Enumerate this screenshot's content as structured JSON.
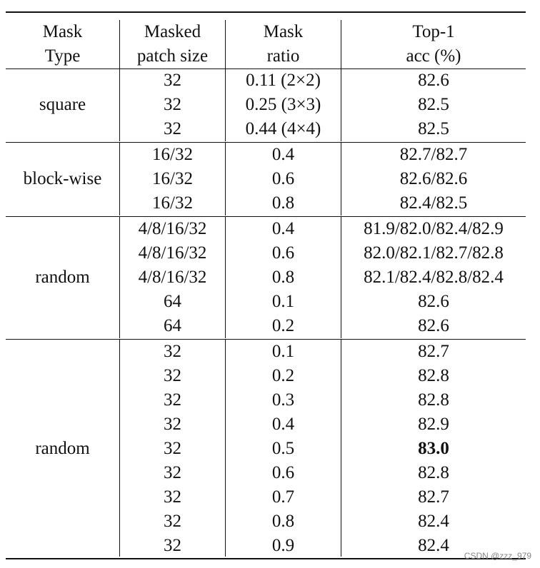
{
  "headers": {
    "mask_type": [
      "Mask",
      "Type"
    ],
    "patch_size": [
      "Masked",
      "patch size"
    ],
    "mask_ratio": [
      "Mask",
      "ratio"
    ],
    "top1": [
      "Top-1",
      "acc (%)"
    ]
  },
  "groups": [
    {
      "mask_type": "square",
      "rows": [
        {
          "patch": "32",
          "ratio": "0.11 (2×2)",
          "acc": "82.6"
        },
        {
          "patch": "32",
          "ratio": "0.25 (3×3)",
          "acc": "82.5"
        },
        {
          "patch": "32",
          "ratio": "0.44 (4×4)",
          "acc": "82.5"
        }
      ]
    },
    {
      "mask_type": "block-wise",
      "rows": [
        {
          "patch": "16/32",
          "ratio": "0.4",
          "acc": "82.7/82.7"
        },
        {
          "patch": "16/32",
          "ratio": "0.6",
          "acc": "82.6/82.6"
        },
        {
          "patch": "16/32",
          "ratio": "0.8",
          "acc": "82.4/82.5"
        }
      ]
    },
    {
      "mask_type": "random",
      "rows": [
        {
          "patch": "4/8/16/32",
          "ratio": "0.4",
          "acc": "81.9/82.0/82.4/82.9"
        },
        {
          "patch": "4/8/16/32",
          "ratio": "0.6",
          "acc": "82.0/82.1/82.7/82.8"
        },
        {
          "patch": "4/8/16/32",
          "ratio": "0.8",
          "acc": "82.1/82.4/82.8/82.4"
        },
        {
          "patch": "64",
          "ratio": "0.1",
          "acc": "82.6"
        },
        {
          "patch": "64",
          "ratio": "0.2",
          "acc": "82.6"
        }
      ]
    },
    {
      "mask_type": "random",
      "rows": [
        {
          "patch": "32",
          "ratio": "0.1",
          "acc": "82.7"
        },
        {
          "patch": "32",
          "ratio": "0.2",
          "acc": "82.8"
        },
        {
          "patch": "32",
          "ratio": "0.3",
          "acc": "82.8"
        },
        {
          "patch": "32",
          "ratio": "0.4",
          "acc": "82.9"
        },
        {
          "patch": "32",
          "ratio": "0.5",
          "acc": "83.0",
          "bold": true
        },
        {
          "patch": "32",
          "ratio": "0.6",
          "acc": "82.8"
        },
        {
          "patch": "32",
          "ratio": "0.7",
          "acc": "82.7"
        },
        {
          "patch": "32",
          "ratio": "0.8",
          "acc": "82.4"
        },
        {
          "patch": "32",
          "ratio": "0.9",
          "acc": "82.4"
        }
      ]
    }
  ],
  "watermark": "CSDN @zzz_979"
}
